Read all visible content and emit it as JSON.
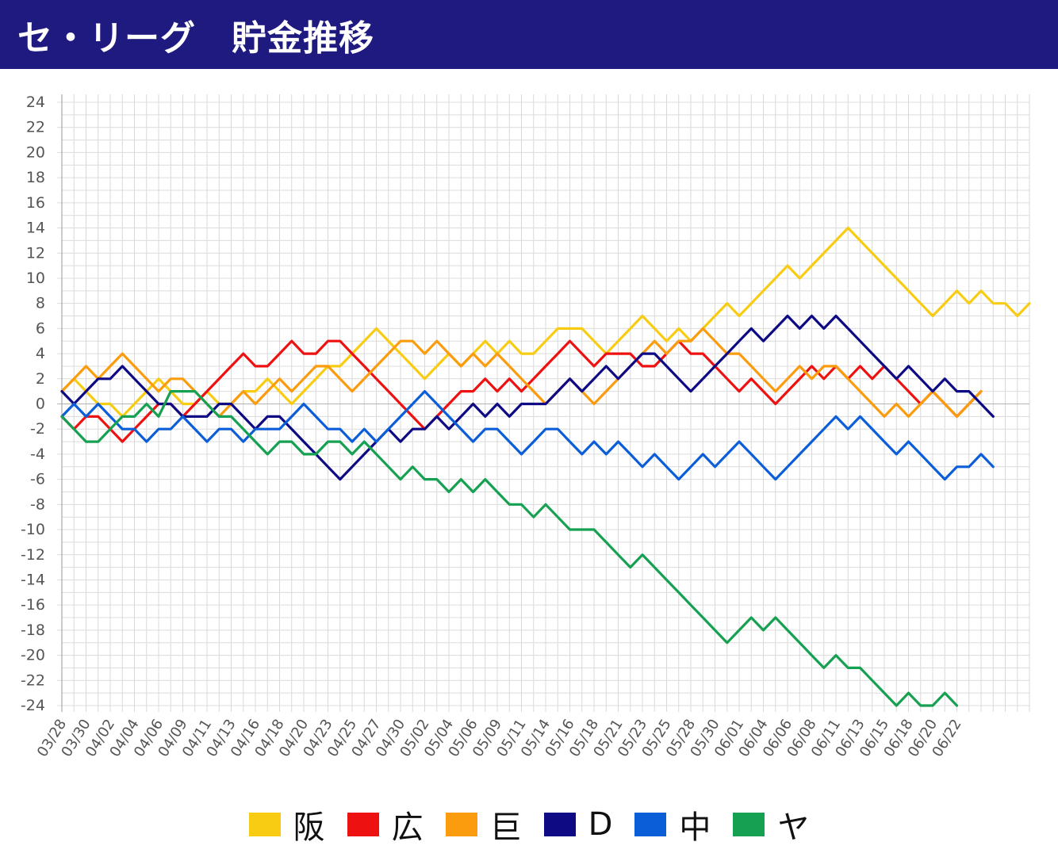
{
  "header": {
    "title": "セ・リーグ　貯金推移"
  },
  "chart_data": {
    "type": "line",
    "title": "セ・リーグ　貯金推移",
    "xlabel": "",
    "ylabel": "",
    "ylim": [
      -24,
      24
    ],
    "y_ticks": [
      24,
      22,
      20,
      18,
      16,
      14,
      12,
      10,
      8,
      6,
      4,
      2,
      0,
      -2,
      -4,
      -6,
      -8,
      -10,
      -12,
      -14,
      -16,
      -18,
      -20,
      -22,
      -24
    ],
    "x_tick_labels": [
      "03/28",
      "03/30",
      "04/02",
      "04/04",
      "04/06",
      "04/09",
      "04/11",
      "04/13",
      "04/16",
      "04/18",
      "04/20",
      "04/23",
      "04/25",
      "04/27",
      "04/30",
      "05/02",
      "05/04",
      "05/06",
      "05/09",
      "05/11",
      "05/14",
      "05/16",
      "05/18",
      "05/21",
      "05/23",
      "05/25",
      "05/28",
      "05/30",
      "06/01",
      "06/04",
      "06/06",
      "06/08",
      "06/11",
      "06/13",
      "06/15",
      "06/18",
      "06/20",
      "06/22"
    ],
    "grid": true,
    "legend_position": "bottom",
    "series": [
      {
        "name": "阪",
        "color": "#f7cc13",
        "values": [
          1,
          2,
          1,
          0,
          0,
          -1,
          0,
          1,
          2,
          1,
          0,
          0,
          1,
          0,
          0,
          1,
          1,
          2,
          1,
          0,
          1,
          2,
          3,
          3,
          4,
          5,
          6,
          5,
          4,
          3,
          2,
          3,
          4,
          3,
          4,
          5,
          4,
          5,
          4,
          4,
          5,
          6,
          6,
          6,
          5,
          4,
          5,
          6,
          7,
          6,
          5,
          6,
          5,
          6,
          7,
          8,
          7,
          8,
          9,
          10,
          11,
          10,
          11,
          12,
          13,
          14,
          13,
          12,
          11,
          10,
          9,
          8,
          7,
          8,
          9,
          8,
          9,
          8,
          8,
          7,
          8
        ]
      },
      {
        "name": "広",
        "color": "#ee1111",
        "values": [
          -1,
          -2,
          -1,
          -1,
          -2,
          -3,
          -2,
          -1,
          0,
          0,
          -1,
          0,
          1,
          2,
          3,
          4,
          3,
          3,
          4,
          5,
          4,
          4,
          5,
          5,
          4,
          3,
          2,
          1,
          0,
          -1,
          -2,
          -1,
          0,
          1,
          1,
          2,
          1,
          2,
          1,
          2,
          3,
          4,
          5,
          4,
          3,
          4,
          4,
          4,
          3,
          3,
          4,
          5,
          4,
          4,
          3,
          2,
          1,
          2,
          1,
          0,
          1,
          2,
          3,
          2,
          3,
          2,
          3,
          2,
          3,
          2,
          1,
          0,
          1,
          0,
          -1,
          0,
          1
        ]
      },
      {
        "name": "巨",
        "color": "#fa9c0e",
        "values": [
          1,
          2,
          3,
          2,
          3,
          4,
          3,
          2,
          1,
          2,
          2,
          1,
          0,
          -1,
          0,
          1,
          0,
          1,
          2,
          1,
          2,
          3,
          3,
          2,
          1,
          2,
          3,
          4,
          5,
          5,
          4,
          5,
          4,
          3,
          4,
          3,
          4,
          3,
          2,
          1,
          0,
          1,
          2,
          1,
          0,
          1,
          2,
          3,
          4,
          5,
          4,
          5,
          5,
          6,
          5,
          4,
          4,
          3,
          2,
          1,
          2,
          3,
          2,
          3,
          3,
          2,
          1,
          0,
          -1,
          0,
          -1,
          0,
          1,
          0,
          -1,
          0,
          1
        ]
      },
      {
        "name": "D",
        "color": "#0d0a84",
        "values": [
          1,
          0,
          1,
          2,
          2,
          3,
          2,
          1,
          0,
          0,
          -1,
          -1,
          -1,
          0,
          0,
          -1,
          -2,
          -1,
          -1,
          -2,
          -3,
          -4,
          -5,
          -6,
          -5,
          -4,
          -3,
          -2,
          -3,
          -2,
          -2,
          -1,
          -2,
          -1,
          0,
          -1,
          0,
          -1,
          0,
          0,
          0,
          1,
          2,
          1,
          2,
          3,
          2,
          3,
          4,
          4,
          3,
          2,
          1,
          2,
          3,
          4,
          5,
          6,
          5,
          6,
          7,
          6,
          7,
          6,
          7,
          6,
          5,
          4,
          3,
          2,
          3,
          2,
          1,
          2,
          1,
          1,
          0,
          -1
        ]
      },
      {
        "name": "中",
        "color": "#0b5ed8",
        "values": [
          -1,
          0,
          -1,
          0,
          -1,
          -2,
          -2,
          -3,
          -2,
          -2,
          -1,
          -2,
          -3,
          -2,
          -2,
          -3,
          -2,
          -2,
          -2,
          -1,
          0,
          -1,
          -2,
          -2,
          -3,
          -2,
          -3,
          -2,
          -1,
          0,
          1,
          0,
          -1,
          -2,
          -3,
          -2,
          -2,
          -3,
          -4,
          -3,
          -2,
          -2,
          -3,
          -4,
          -3,
          -4,
          -3,
          -4,
          -5,
          -4,
          -5,
          -6,
          -5,
          -4,
          -5,
          -4,
          -3,
          -4,
          -5,
          -6,
          -5,
          -4,
          -3,
          -2,
          -1,
          -2,
          -1,
          -2,
          -3,
          -4,
          -3,
          -4,
          -5,
          -6,
          -5,
          -5,
          -4,
          -5
        ]
      },
      {
        "name": "ヤ",
        "color": "#16a152",
        "values": [
          -1,
          -2,
          -3,
          -3,
          -2,
          -1,
          -1,
          0,
          -1,
          1,
          1,
          1,
          0,
          -1,
          -1,
          -2,
          -3,
          -4,
          -3,
          -3,
          -4,
          -4,
          -3,
          -3,
          -4,
          -3,
          -4,
          -5,
          -6,
          -5,
          -6,
          -6,
          -7,
          -6,
          -7,
          -6,
          -7,
          -8,
          -8,
          -9,
          -8,
          -9,
          -10,
          -10,
          -10,
          -11,
          -12,
          -13,
          -12,
          -13,
          -14,
          -15,
          -16,
          -17,
          -18,
          -19,
          -18,
          -17,
          -18,
          -17,
          -18,
          -19,
          -20,
          -21,
          -20,
          -21,
          -21,
          -22,
          -23,
          -24,
          -23,
          -24,
          -24,
          -23,
          -24
        ]
      }
    ]
  }
}
